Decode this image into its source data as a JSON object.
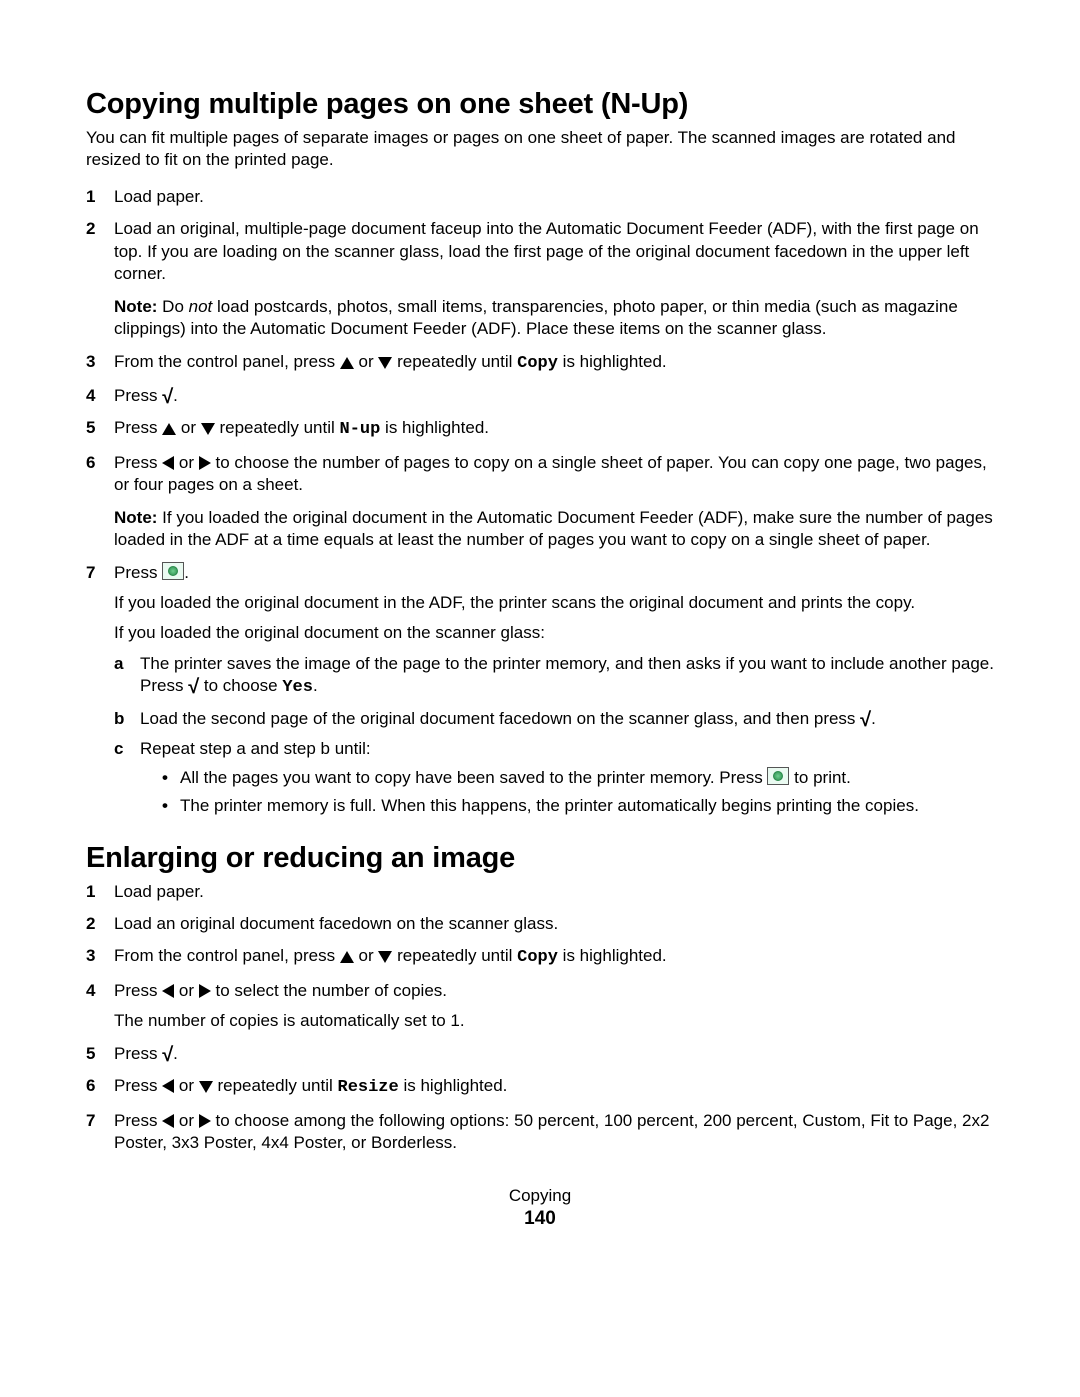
{
  "section1": {
    "title": "Copying multiple pages on one sheet (N-Up)",
    "intro": "You can fit multiple pages of separate images or pages on one sheet of paper. The scanned images are rotated and resized to fit on the printed page.",
    "steps": {
      "s1": "Load paper.",
      "s2": "Load an original, multiple-page document faceup into the Automatic Document Feeder (ADF), with the first page on top. If you are loading on the scanner glass, load the first page of the original document facedown in the upper left corner.",
      "s2_note_label": "Note:",
      "s2_note_a": " Do ",
      "s2_note_not": "not",
      "s2_note_b": " load postcards, photos, small items, transparencies, photo paper, or thin media (such as magazine clippings) into the Automatic Document Feeder (ADF). Place these items on the scanner glass.",
      "s3_a": "From the control panel, press ",
      "s3_b": " or ",
      "s3_c": " repeatedly until ",
      "s3_copy": "Copy",
      "s3_d": " is highlighted.",
      "s4_a": "Press ",
      "s4_b": ".",
      "s5_a": "Press ",
      "s5_b": " or ",
      "s5_c": " repeatedly until ",
      "s5_nup": "N-up",
      "s5_d": " is highlighted.",
      "s6_a": "Press ",
      "s6_b": " or ",
      "s6_c": " to choose the number of pages to copy on a single sheet of paper. You can copy one page, two pages, or four pages on a sheet.",
      "s6_note_label": "Note:",
      "s6_note": " If you loaded the original document in the Automatic Document Feeder (ADF), make sure the number of pages loaded in the ADF at a time equals at least the number of pages you want to copy on a single sheet of paper.",
      "s7_a": "Press ",
      "s7_b": ".",
      "s7_p1": "If you loaded the original document in the ADF, the printer scans the original document and prints the copy.",
      "s7_p2": "If you loaded the original document on the scanner glass:",
      "s7_sub_a_1": "The printer saves the image of the page to the printer memory, and then asks if you want to include another page. Press ",
      "s7_sub_a_2": " to choose ",
      "s7_sub_a_yes": "Yes",
      "s7_sub_a_3": ".",
      "s7_sub_b_1": "Load the second page of the original document facedown on the scanner glass, and then press ",
      "s7_sub_b_2": ".",
      "s7_sub_c": "Repeat step a and step b until:",
      "s7_bullet1_a": "All the pages you want to copy have been saved to the printer memory. Press ",
      "s7_bullet1_b": " to print.",
      "s7_bullet2": "The printer memory is full. When this happens, the printer automatically begins printing the copies."
    }
  },
  "section2": {
    "title": "Enlarging or reducing an image",
    "steps": {
      "s1": "Load paper.",
      "s2": "Load an original document facedown on the scanner glass.",
      "s3_a": "From the control panel, press ",
      "s3_b": " or ",
      "s3_c": " repeatedly until ",
      "s3_copy": "Copy",
      "s3_d": " is highlighted.",
      "s4_a": "Press ",
      "s4_b": " or ",
      "s4_c": " to select the number of copies.",
      "s4_p": "The number of copies is automatically set to 1.",
      "s5_a": "Press ",
      "s5_b": ".",
      "s6_a": "Press ",
      "s6_b": " or ",
      "s6_c": " repeatedly until ",
      "s6_resize": "Resize",
      "s6_d": " is highlighted.",
      "s7_a": "Press ",
      "s7_b": " or ",
      "s7_c": " to choose among the following options: 50 percent, 100 percent, 200 percent, Custom, Fit to Page, 2x2 Poster, 3x3 Poster, 4x4 Poster, or Borderless."
    }
  },
  "footer": {
    "section": "Copying",
    "page": "140"
  }
}
